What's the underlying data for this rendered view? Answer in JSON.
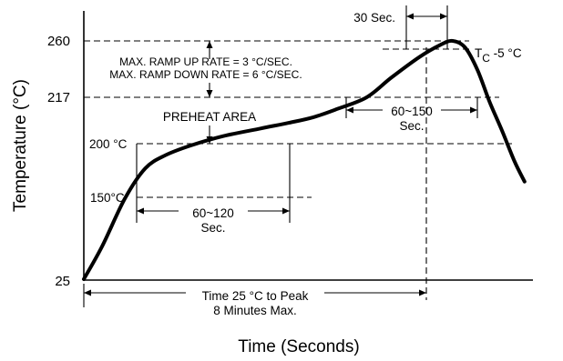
{
  "chart_data": {
    "type": "line",
    "title": "",
    "xlabel": "Time (Seconds)",
    "ylabel": "Temperature (°C)",
    "x_ticks_shown": false,
    "grid": false,
    "y_ticks": [
      25,
      217,
      260
    ],
    "y_tick_labels": [
      "25",
      "217",
      "260"
    ],
    "series": [
      {
        "points": [
          [
            0,
            25
          ],
          [
            0.45,
            60
          ],
          [
            1.0,
            110
          ],
          [
            1.5,
            142
          ],
          [
            2.0,
            156
          ],
          [
            2.6,
            166
          ],
          [
            3.4,
            176
          ],
          [
            4.3,
            184
          ],
          [
            5.0,
            190
          ],
          [
            5.6,
            196
          ],
          [
            6.2,
            205
          ],
          [
            6.9,
            217
          ],
          [
            7.5,
            232
          ],
          [
            8.2,
            248
          ],
          [
            8.7,
            257
          ],
          [
            9.0,
            260
          ],
          [
            9.3,
            255
          ],
          [
            9.6,
            238
          ],
          [
            9.9,
            212
          ],
          [
            10.2,
            182
          ],
          [
            10.5,
            150
          ],
          [
            10.75,
            128
          ]
        ]
      }
    ],
    "curve_color": "#000000",
    "annotations": {
      "temp_200": "200 °C",
      "temp_150": "150°C",
      "ramp_up": "MAX. RAMP UP RATE = 3 °C/SEC.",
      "ramp_down": "MAX. RAMP DOWN RATE = 6 °C/SEC.",
      "preheat": "PREHEAT AREA",
      "preheat_time_1": "60~120",
      "preheat_time_2": "Sec.",
      "reflow_time_1": "60~150",
      "reflow_time_2": "Sec.",
      "peak_time": "30 Sec.",
      "tc_main": "T",
      "tc_sub": "C",
      "tc_rest": " -5 °C",
      "total_time_1": "Time 25 °C to Peak",
      "total_time_2": "8 Minutes Max."
    }
  }
}
